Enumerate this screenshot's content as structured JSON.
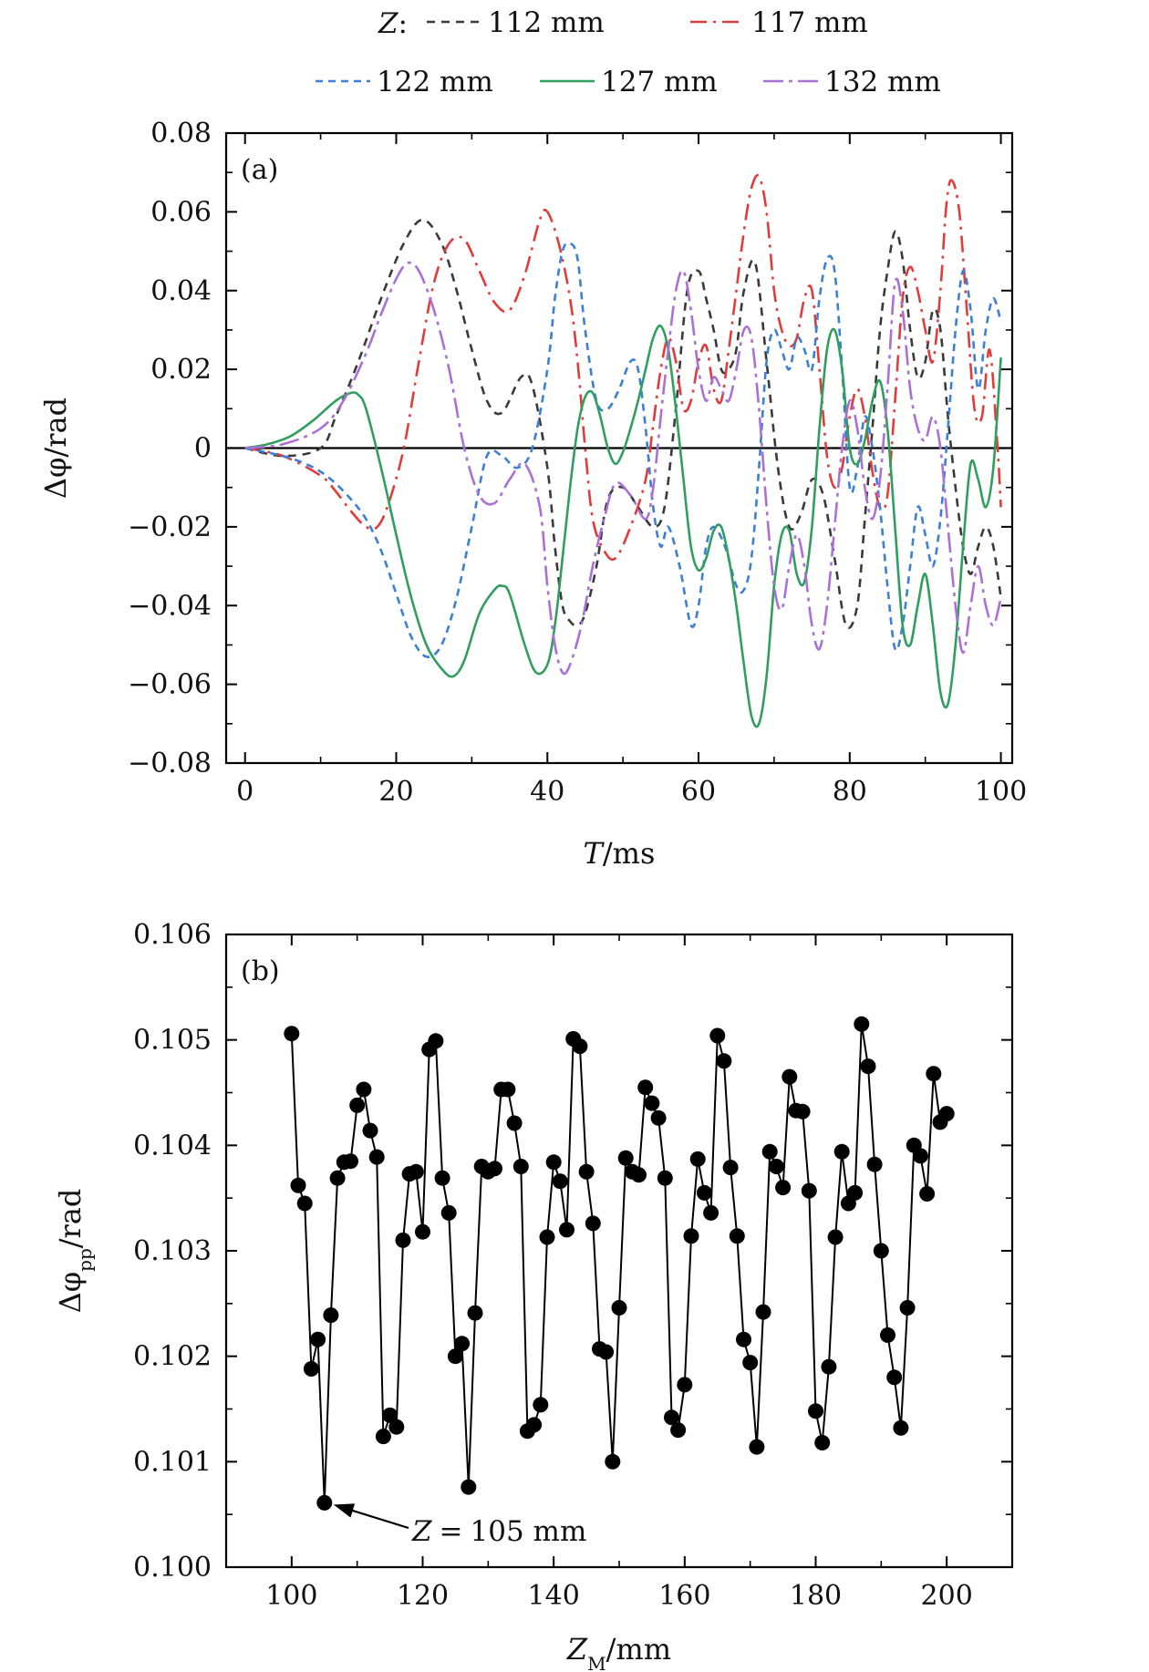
{
  "chart_data": [
    {
      "panel": "(a)",
      "type": "line",
      "xlabel_var": "T",
      "xlabel_unit": "/ms",
      "ylabel_var": "Δφ",
      "ylabel_unit": "/rad",
      "xlim": [
        -2.5,
        101.5
      ],
      "ylim": [
        -0.08,
        0.08
      ],
      "xticks": [
        0,
        20,
        40,
        60,
        80,
        100
      ],
      "yticks": [
        -0.08,
        -0.06,
        -0.04,
        -0.02,
        0,
        0.02,
        0.04,
        0.06,
        0.08
      ],
      "ytick_labels": [
        "−0.08",
        "−0.06",
        "−0.04",
        "−0.02",
        "0",
        "0.02",
        "0.04",
        "0.06",
        "0.08"
      ],
      "legend": {
        "title": "Z",
        "title_suffix": ":",
        "placement": "top-outside"
      },
      "zero_line": true,
      "series": [
        {
          "name": "112 mm",
          "color": "#3a3a3a",
          "dash": "9,7",
          "x": [
            0,
            5,
            10,
            12,
            15,
            18,
            21,
            23.5,
            26,
            28,
            30,
            32,
            34,
            36.5,
            38,
            40,
            41,
            42,
            43,
            44,
            45,
            46.5,
            48,
            50,
            52,
            54,
            55.5,
            57,
            58.5,
            60,
            61,
            62,
            63,
            64,
            65,
            66,
            67.5,
            69,
            70.5,
            72,
            73.5,
            75,
            76.5,
            78,
            79.5,
            81,
            82,
            83,
            84,
            85,
            86,
            87,
            88,
            89,
            90,
            91,
            92,
            93,
            94,
            95,
            96,
            97,
            98,
            99,
            100
          ],
          "y": [
            0,
            -0.002,
            0.0,
            0.008,
            0.022,
            0.038,
            0.052,
            0.058,
            0.052,
            0.04,
            0.025,
            0.012,
            0.009,
            0.018,
            0.016,
            -0.005,
            -0.025,
            -0.04,
            -0.044,
            -0.045,
            -0.042,
            -0.03,
            -0.013,
            -0.01,
            -0.015,
            -0.02,
            -0.015,
            0.01,
            0.04,
            0.045,
            0.038,
            0.03,
            0.02,
            0.02,
            0.025,
            0.04,
            0.047,
            0.022,
            -0.005,
            -0.02,
            -0.017,
            -0.008,
            -0.012,
            -0.028,
            -0.045,
            -0.04,
            -0.018,
            0.005,
            0.03,
            0.045,
            0.055,
            0.048,
            0.03,
            0.018,
            0.022,
            0.035,
            0.03,
            0.008,
            -0.01,
            -0.025,
            -0.032,
            -0.025,
            -0.02,
            -0.025,
            -0.038
          ]
        },
        {
          "name": "117 mm",
          "color": "#e03c3c",
          "dash": "18,7,3,7",
          "x": [
            0,
            5,
            10,
            12,
            14,
            16,
            17.5,
            19,
            21,
            23,
            25,
            27,
            29,
            31,
            33,
            35,
            37,
            39,
            40,
            41.5,
            43,
            44,
            45,
            46,
            47.5,
            49,
            51,
            53,
            54,
            55,
            56,
            57,
            58,
            59,
            60,
            61,
            62,
            63,
            64,
            65,
            66,
            67,
            68,
            69,
            70,
            71,
            72,
            73,
            74,
            75,
            76,
            77,
            78,
            79,
            80,
            81,
            82,
            83,
            84,
            85,
            86,
            87,
            88,
            89,
            90,
            91,
            92,
            92.8,
            93.5,
            94.5,
            95.5,
            96.5,
            97.5,
            98.5,
            99.5,
            100
          ],
          "y": [
            0,
            -0.002,
            -0.007,
            -0.011,
            -0.016,
            -0.02,
            -0.02,
            -0.014,
            0.0,
            0.022,
            0.042,
            0.052,
            0.053,
            0.045,
            0.037,
            0.035,
            0.044,
            0.058,
            0.06,
            0.052,
            0.038,
            0.022,
            0.0,
            -0.018,
            -0.026,
            -0.028,
            -0.02,
            -0.008,
            0.006,
            0.02,
            0.028,
            0.022,
            0.01,
            0.012,
            0.022,
            0.026,
            0.015,
            0.012,
            0.025,
            0.04,
            0.055,
            0.066,
            0.069,
            0.06,
            0.04,
            0.03,
            0.026,
            0.028,
            0.038,
            0.04,
            0.02,
            -0.002,
            -0.01,
            -0.005,
            0.008,
            0.015,
            0.008,
            -0.006,
            -0.015,
            -0.012,
            0.012,
            0.038,
            0.046,
            0.04,
            0.03,
            0.022,
            0.04,
            0.062,
            0.068,
            0.06,
            0.035,
            0.01,
            0.008,
            0.025,
            0.002,
            -0.015
          ]
        },
        {
          "name": "122 mm",
          "color": "#3b7fd6",
          "dash": "8,6",
          "x": [
            0,
            5,
            8,
            10,
            12,
            14,
            16,
            18,
            20,
            22,
            24,
            26,
            28,
            30,
            32,
            34,
            36,
            38,
            40,
            41,
            42,
            43,
            44,
            45,
            46.5,
            48,
            49.5,
            51,
            52,
            53,
            54,
            55,
            56,
            57.5,
            59,
            60,
            61,
            62,
            63.5,
            65,
            66,
            67,
            68,
            69,
            70,
            71,
            72,
            73,
            74,
            75,
            76,
            77,
            78,
            79,
            80,
            81,
            82,
            83,
            84,
            85,
            86,
            87,
            88,
            89,
            90,
            91,
            92,
            93,
            94,
            95,
            96,
            97,
            98,
            99,
            100
          ],
          "y": [
            0,
            -0.002,
            -0.004,
            -0.006,
            -0.009,
            -0.013,
            -0.018,
            -0.026,
            -0.037,
            -0.048,
            -0.053,
            -0.05,
            -0.038,
            -0.02,
            -0.002,
            -0.002,
            -0.005,
            0.0,
            0.02,
            0.038,
            0.05,
            0.052,
            0.048,
            0.03,
            0.012,
            0.01,
            0.015,
            0.022,
            0.02,
            0.005,
            -0.015,
            -0.025,
            -0.02,
            -0.03,
            -0.045,
            -0.04,
            -0.025,
            -0.02,
            -0.025,
            -0.035,
            -0.036,
            -0.028,
            -0.005,
            0.022,
            0.03,
            0.025,
            0.02,
            0.028,
            0.025,
            0.02,
            0.038,
            0.048,
            0.045,
            0.02,
            -0.01,
            -0.005,
            0.008,
            0.0,
            -0.015,
            -0.035,
            -0.051,
            -0.045,
            -0.03,
            -0.015,
            -0.022,
            -0.03,
            -0.018,
            0.005,
            0.03,
            0.045,
            0.035,
            0.015,
            0.03,
            0.038,
            0.032
          ]
        },
        {
          "name": "127 mm",
          "color": "#2f9e5e",
          "dash": "",
          "x": [
            0,
            3,
            6,
            9,
            12,
            14,
            15,
            16,
            18,
            20,
            22,
            24,
            26,
            27.5,
            29,
            31,
            33,
            34,
            35,
            37,
            38.5,
            40,
            41,
            42,
            43,
            44,
            45,
            46,
            47,
            48,
            49,
            50,
            51,
            52,
            53,
            54,
            55,
            56,
            57,
            58,
            59,
            60,
            61,
            62,
            63,
            64,
            65,
            66,
            67,
            68,
            69,
            70,
            71,
            72,
            73,
            74,
            75,
            76,
            77,
            78,
            79,
            80,
            81,
            82,
            83,
            84,
            85,
            86,
            87,
            88,
            89,
            90,
            91,
            92,
            93,
            94,
            95,
            96,
            97,
            98,
            99,
            100
          ],
          "y": [
            0,
            0.001,
            0.003,
            0.007,
            0.012,
            0.014,
            0.0135,
            0.01,
            -0.005,
            -0.022,
            -0.038,
            -0.05,
            -0.056,
            -0.058,
            -0.054,
            -0.042,
            -0.036,
            -0.035,
            -0.037,
            -0.05,
            -0.057,
            -0.055,
            -0.045,
            -0.028,
            -0.01,
            0.005,
            0.013,
            0.014,
            0.008,
            0.0,
            -0.004,
            -0.001,
            0.005,
            0.012,
            0.02,
            0.028,
            0.031,
            0.025,
            0.01,
            -0.008,
            -0.025,
            -0.031,
            -0.028,
            -0.021,
            -0.02,
            -0.028,
            -0.04,
            -0.055,
            -0.068,
            -0.07,
            -0.058,
            -0.035,
            -0.022,
            -0.021,
            -0.032,
            -0.034,
            -0.02,
            0.005,
            0.025,
            0.03,
            0.02,
            0.0,
            -0.004,
            0.002,
            0.012,
            0.017,
            0.005,
            -0.02,
            -0.045,
            -0.05,
            -0.04,
            -0.032,
            -0.045,
            -0.062,
            -0.065,
            -0.05,
            -0.025,
            -0.004,
            -0.008,
            -0.015,
            -0.005,
            0.023
          ]
        },
        {
          "name": "132 mm",
          "color": "#a970d8",
          "dash": "22,6,4,6",
          "x": [
            0,
            5,
            10,
            13,
            16,
            18,
            20,
            21.5,
            23,
            25,
            27,
            29,
            31,
            33,
            35,
            37,
            39,
            40,
            41,
            42,
            43,
            44.5,
            46,
            47.5,
            49,
            51,
            53,
            54,
            55,
            56,
            57,
            58,
            59,
            60,
            61,
            62,
            63,
            64,
            65,
            66,
            67,
            68,
            69,
            70,
            71,
            72,
            73,
            74,
            75,
            76,
            77,
            78,
            79,
            80,
            81,
            82,
            83,
            84,
            85,
            86,
            87,
            88,
            89,
            90,
            91,
            92,
            93,
            94,
            95,
            96,
            97,
            98,
            99,
            100
          ],
          "y": [
            0,
            0.001,
            0.005,
            0.012,
            0.024,
            0.034,
            0.043,
            0.047,
            0.045,
            0.035,
            0.02,
            0.0,
            -0.012,
            -0.014,
            -0.008,
            -0.004,
            -0.015,
            -0.035,
            -0.05,
            -0.057,
            -0.055,
            -0.045,
            -0.03,
            -0.018,
            -0.009,
            -0.012,
            -0.018,
            -0.01,
            0.008,
            0.025,
            0.04,
            0.045,
            0.035,
            0.02,
            0.012,
            0.018,
            0.015,
            0.012,
            0.02,
            0.03,
            0.028,
            0.01,
            -0.015,
            -0.035,
            -0.041,
            -0.03,
            -0.022,
            -0.03,
            -0.045,
            -0.051,
            -0.04,
            -0.02,
            0.0,
            0.012,
            0.005,
            -0.01,
            -0.018,
            -0.008,
            0.015,
            0.042,
            0.035,
            0.015,
            0.005,
            0.002,
            0.008,
            0.0,
            -0.02,
            -0.04,
            -0.052,
            -0.04,
            -0.03,
            -0.04,
            -0.045,
            -0.038
          ]
        }
      ]
    },
    {
      "panel": "(b)",
      "type": "scatter",
      "xlabel_var": "Z",
      "xlabel_sub": "M",
      "xlabel_unit": "/mm",
      "ylabel_var": "Δφ",
      "ylabel_sub": "pp",
      "ylabel_unit": "/rad",
      "xlim": [
        90,
        210
      ],
      "ylim": [
        0.1,
        0.106
      ],
      "xticks": [
        100,
        120,
        140,
        160,
        180,
        200
      ],
      "yticks": [
        0.1,
        0.101,
        0.102,
        0.103,
        0.104,
        0.105,
        0.106
      ],
      "ytick_labels": [
        "0.100",
        "0.101",
        "0.102",
        "0.103",
        "0.104",
        "0.105",
        "0.106"
      ],
      "connect_points": true,
      "color": "#000000",
      "annotation": {
        "var": "Z",
        "op": "=",
        "value": "105 mm",
        "x": 105,
        "y": 0.10061
      },
      "x": [
        100,
        101,
        102,
        103,
        104,
        105,
        106,
        107,
        108,
        109,
        110,
        111,
        112,
        113,
        114,
        115,
        116,
        117,
        118,
        119,
        120,
        121,
        122,
        123,
        124,
        125,
        126,
        127,
        128,
        129,
        130,
        131,
        132,
        133,
        134,
        135,
        136,
        137,
        138,
        139,
        140,
        141,
        142,
        143,
        144,
        145,
        146,
        147,
        148,
        149,
        150,
        151,
        152,
        153,
        154,
        155,
        156,
        157,
        158,
        159,
        160,
        161,
        162,
        163,
        164,
        165,
        166,
        167,
        168,
        169,
        170,
        171,
        172,
        173,
        174,
        175,
        176,
        177,
        178,
        179,
        180,
        181,
        182,
        183,
        184,
        185,
        186,
        187,
        188,
        189,
        190,
        191,
        192,
        193,
        194,
        195,
        196,
        197,
        198,
        199,
        200
      ],
      "values": [
        0.10506,
        0.10362,
        0.10345,
        0.10188,
        0.10216,
        0.10061,
        0.10239,
        0.10369,
        0.10384,
        0.10385,
        0.10438,
        0.10453,
        0.10414,
        0.10389,
        0.10124,
        0.10144,
        0.10133,
        0.1031,
        0.10373,
        0.10375,
        0.10318,
        0.10491,
        0.10499,
        0.10369,
        0.10336,
        0.102,
        0.10212,
        0.10076,
        0.10241,
        0.1038,
        0.10375,
        0.10378,
        0.10453,
        0.10453,
        0.10421,
        0.1038,
        0.10129,
        0.10135,
        0.10154,
        0.10313,
        0.10384,
        0.10366,
        0.1032,
        0.10501,
        0.10494,
        0.10375,
        0.10326,
        0.10207,
        0.10204,
        0.101,
        0.10246,
        0.10388,
        0.10375,
        0.10372,
        0.10455,
        0.1044,
        0.10426,
        0.10369,
        0.10142,
        0.1013,
        0.10173,
        0.10314,
        0.10387,
        0.10355,
        0.10336,
        0.10504,
        0.1048,
        0.10379,
        0.10314,
        0.10216,
        0.10194,
        0.10114,
        0.10242,
        0.10394,
        0.1038,
        0.1036,
        0.10465,
        0.10433,
        0.10432,
        0.10357,
        0.10148,
        0.10118,
        0.1019,
        0.10313,
        0.10394,
        0.10345,
        0.10355,
        0.10515,
        0.10475,
        0.10382,
        0.103,
        0.1022,
        0.1018,
        0.10132,
        0.10246,
        0.104,
        0.1039,
        0.10354,
        0.10468,
        0.10422,
        0.1043
      ]
    }
  ]
}
